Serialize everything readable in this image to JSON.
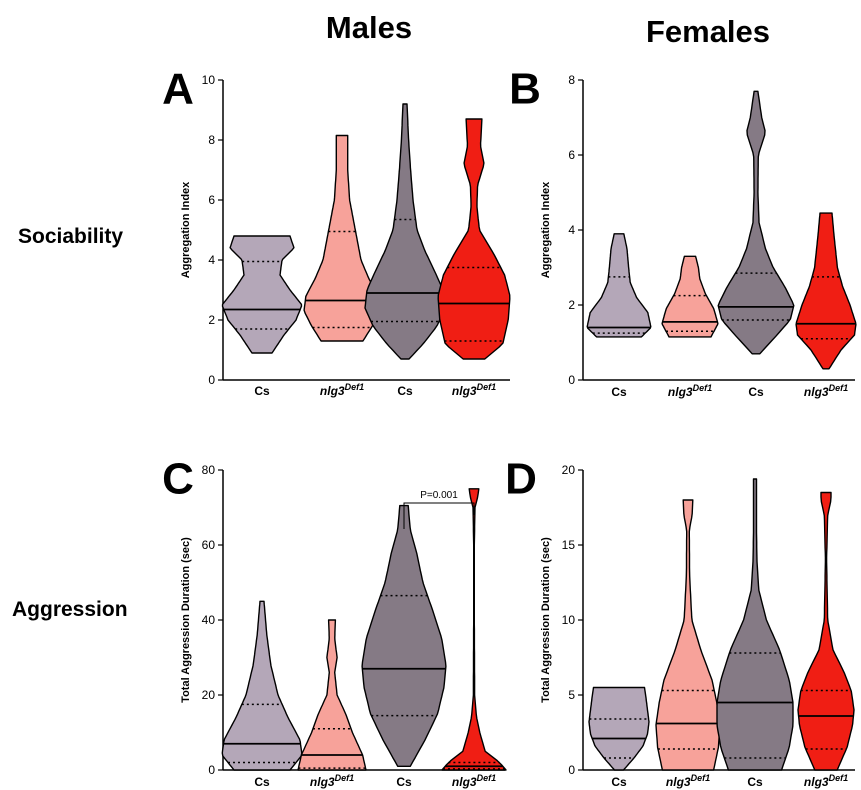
{
  "figure": {
    "col_titles": [
      "Males",
      "Females"
    ],
    "row_titles": [
      "Sociability",
      "Aggression"
    ]
  },
  "chart_data": [
    {
      "type": "violin",
      "panel": "A",
      "ylabel": "Aggregation Index",
      "ylim": [
        0,
        10
      ],
      "yticks": [
        0,
        2,
        4,
        6,
        8,
        10
      ],
      "categories": [
        "Cs",
        "nlg3^Def1",
        "Cs",
        "nlg3^Def1"
      ],
      "colors": [
        "#b4a7b8",
        "#f7a29a",
        "#857a85",
        "#f01e14"
      ],
      "series": [
        {
          "min": 0.9,
          "max": 4.8,
          "median": 2.35,
          "q1": 1.7,
          "q3": 3.95,
          "shape": [
            [
              0.9,
              0.25
            ],
            [
              1.5,
              0.55
            ],
            [
              2.0,
              0.85
            ],
            [
              2.5,
              1.0
            ],
            [
              3.0,
              0.7
            ],
            [
              3.5,
              0.45
            ],
            [
              4.0,
              0.5
            ],
            [
              4.4,
              0.8
            ],
            [
              4.8,
              0.7
            ]
          ]
        },
        {
          "min": 1.3,
          "max": 8.15,
          "median": 2.65,
          "q1": 1.75,
          "q3": 4.95,
          "shape": [
            [
              1.3,
              0.55
            ],
            [
              1.8,
              0.8
            ],
            [
              2.3,
              1.0
            ],
            [
              2.8,
              0.95
            ],
            [
              3.4,
              0.7
            ],
            [
              4.0,
              0.5
            ],
            [
              5.0,
              0.35
            ],
            [
              6.0,
              0.2
            ],
            [
              7.0,
              0.15
            ],
            [
              8.15,
              0.15
            ]
          ]
        },
        {
          "min": 0.7,
          "max": 9.2,
          "median": 2.9,
          "q1": 1.95,
          "q3": 5.35,
          "shape": [
            [
              0.7,
              0.1
            ],
            [
              1.2,
              0.45
            ],
            [
              1.8,
              0.8
            ],
            [
              2.4,
              1.0
            ],
            [
              3.0,
              0.95
            ],
            [
              3.6,
              0.75
            ],
            [
              4.3,
              0.5
            ],
            [
              5.0,
              0.3
            ],
            [
              6.0,
              0.2
            ],
            [
              7.0,
              0.14
            ],
            [
              8.0,
              0.09
            ],
            [
              9.2,
              0.05
            ]
          ]
        },
        {
          "min": 0.7,
          "max": 8.7,
          "median": 2.55,
          "q1": 1.3,
          "q3": 3.75,
          "shape": [
            [
              0.7,
              0.3
            ],
            [
              1.2,
              0.8
            ],
            [
              2.0,
              0.95
            ],
            [
              2.8,
              1.0
            ],
            [
              3.5,
              0.85
            ],
            [
              4.2,
              0.55
            ],
            [
              5.0,
              0.15
            ],
            [
              5.8,
              0.08
            ],
            [
              6.5,
              0.1
            ],
            [
              7.2,
              0.28
            ],
            [
              7.8,
              0.18
            ],
            [
              8.7,
              0.22
            ]
          ]
        }
      ]
    },
    {
      "type": "violin",
      "panel": "B",
      "ylabel": "Aggregation Index",
      "ylim": [
        0,
        8
      ],
      "yticks": [
        0,
        2,
        4,
        6,
        8
      ],
      "categories": [
        "Cs",
        "nlg3^Def1",
        "Cs",
        "nlg3^Def1"
      ],
      "colors": [
        "#b4a7b8",
        "#f7a29a",
        "#857a85",
        "#f01e14"
      ],
      "series": [
        {
          "min": 1.15,
          "max": 3.9,
          "median": 1.4,
          "q1": 1.25,
          "q3": 2.75,
          "shape": [
            [
              1.15,
              0.7
            ],
            [
              1.4,
              1.0
            ],
            [
              1.8,
              0.9
            ],
            [
              2.2,
              0.55
            ],
            [
              2.6,
              0.35
            ],
            [
              3.0,
              0.3
            ],
            [
              3.5,
              0.25
            ],
            [
              3.9,
              0.15
            ]
          ]
        },
        {
          "min": 1.15,
          "max": 3.3,
          "median": 1.55,
          "q1": 1.3,
          "q3": 2.25,
          "shape": [
            [
              1.15,
              0.75
            ],
            [
              1.5,
              1.0
            ],
            [
              1.9,
              0.85
            ],
            [
              2.3,
              0.55
            ],
            [
              2.7,
              0.35
            ],
            [
              3.0,
              0.3
            ],
            [
              3.3,
              0.2
            ]
          ]
        },
        {
          "min": 0.7,
          "max": 7.7,
          "median": 1.95,
          "q1": 1.6,
          "q3": 2.85,
          "shape": [
            [
              0.7,
              0.1
            ],
            [
              1.2,
              0.55
            ],
            [
              1.6,
              0.9
            ],
            [
              2.0,
              1.0
            ],
            [
              2.5,
              0.75
            ],
            [
              3.0,
              0.45
            ],
            [
              3.5,
              0.25
            ],
            [
              4.2,
              0.08
            ],
            [
              5.0,
              0.05
            ],
            [
              6.0,
              0.06
            ],
            [
              6.6,
              0.25
            ],
            [
              7.0,
              0.15
            ],
            [
              7.7,
              0.05
            ]
          ]
        },
        {
          "min": 0.3,
          "max": 4.45,
          "median": 1.5,
          "q1": 1.1,
          "q3": 2.75,
          "shape": [
            [
              0.3,
              0.1
            ],
            [
              0.8,
              0.5
            ],
            [
              1.2,
              0.95
            ],
            [
              1.5,
              1.0
            ],
            [
              2.0,
              0.8
            ],
            [
              2.5,
              0.55
            ],
            [
              3.0,
              0.38
            ],
            [
              3.6,
              0.3
            ],
            [
              4.0,
              0.25
            ],
            [
              4.45,
              0.2
            ]
          ]
        }
      ]
    },
    {
      "type": "violin",
      "panel": "C",
      "ylabel": "Total Aggression Duration (sec)",
      "ylim": [
        0,
        80
      ],
      "yticks": [
        0,
        20,
        40,
        60,
        80
      ],
      "categories": [
        "Cs",
        "nlg3^Def1",
        "Cs",
        "nlg3^Def1"
      ],
      "colors": [
        "#b4a7b8",
        "#f7a29a",
        "#857a85",
        "#f01e14"
      ],
      "annotation": {
        "text": "P=0.001",
        "from": 2,
        "to": 3
      },
      "series": [
        {
          "min": 0,
          "max": 45,
          "median": 7,
          "q1": 2,
          "q3": 17.5,
          "shape": [
            [
              0,
              0.7
            ],
            [
              4,
              1.0
            ],
            [
              8,
              0.95
            ],
            [
              14,
              0.65
            ],
            [
              20,
              0.4
            ],
            [
              28,
              0.22
            ],
            [
              36,
              0.12
            ],
            [
              45,
              0.05
            ]
          ]
        },
        {
          "min": 0,
          "max": 40,
          "median": 4,
          "q1": 0.5,
          "q3": 11,
          "shape": [
            [
              0,
              1.0
            ],
            [
              4,
              0.9
            ],
            [
              10,
              0.6
            ],
            [
              15,
              0.4
            ],
            [
              20,
              0.15
            ],
            [
              26,
              0.08
            ],
            [
              30,
              0.15
            ],
            [
              35,
              0.08
            ],
            [
              40,
              0.1
            ]
          ]
        },
        {
          "min": 1,
          "max": 70.5,
          "median": 27,
          "q1": 14.5,
          "q3": 46.5,
          "shape": [
            [
              1,
              0.15
            ],
            [
              8,
              0.5
            ],
            [
              15,
              0.8
            ],
            [
              22,
              0.95
            ],
            [
              28,
              1.0
            ],
            [
              35,
              0.9
            ],
            [
              42,
              0.7
            ],
            [
              50,
              0.45
            ],
            [
              58,
              0.3
            ],
            [
              64,
              0.15
            ],
            [
              70.5,
              0.1
            ]
          ]
        },
        {
          "min": 0,
          "max": 75,
          "median": 1,
          "q1": 0.3,
          "q3": 2,
          "shape": [
            [
              0,
              1.0
            ],
            [
              2,
              0.8
            ],
            [
              5,
              0.35
            ],
            [
              10,
              0.18
            ],
            [
              14,
              0.08
            ],
            [
              20,
              0.02
            ],
            [
              40,
              0.01
            ],
            [
              60,
              0.01
            ],
            [
              70,
              0.03
            ],
            [
              73,
              0.12
            ],
            [
              75,
              0.15
            ]
          ]
        }
      ]
    },
    {
      "type": "violin",
      "panel": "D",
      "ylabel": "Total Aggression Duration (sec)",
      "ylim": [
        0,
        20
      ],
      "yticks": [
        0,
        5,
        10,
        15,
        20
      ],
      "categories": [
        "Cs",
        "nlg3^Def1",
        "Cs",
        "nlg3^Def1"
      ],
      "colors": [
        "#b4a7b8",
        "#f7a29a",
        "#857a85",
        "#f01e14"
      ],
      "series": [
        {
          "min": 0,
          "max": 5.5,
          "median": 2.1,
          "q1": 0.8,
          "q3": 3.4,
          "shape": [
            [
              0,
              0.15
            ],
            [
              0.8,
              0.5
            ],
            [
              1.6,
              0.8
            ],
            [
              2.4,
              0.95
            ],
            [
              3.2,
              1.0
            ],
            [
              4.0,
              0.95
            ],
            [
              4.8,
              0.9
            ],
            [
              5.5,
              0.85
            ]
          ]
        },
        {
          "min": 0,
          "max": 18,
          "median": 3.1,
          "q1": 1.4,
          "q3": 5.3,
          "shape": [
            [
              0,
              0.8
            ],
            [
              1.5,
              0.95
            ],
            [
              3,
              1.0
            ],
            [
              4.5,
              0.9
            ],
            [
              6,
              0.75
            ],
            [
              8,
              0.4
            ],
            [
              10,
              0.12
            ],
            [
              13,
              0.05
            ],
            [
              16,
              0.04
            ],
            [
              17,
              0.13
            ],
            [
              18,
              0.15
            ]
          ]
        },
        {
          "min": 0,
          "max": 19.4,
          "median": 4.5,
          "q1": 0.8,
          "q3": 7.8,
          "shape": [
            [
              0,
              0.7
            ],
            [
              1.5,
              0.9
            ],
            [
              3,
              1.0
            ],
            [
              4.5,
              1.0
            ],
            [
              6,
              0.9
            ],
            [
              8,
              0.65
            ],
            [
              10,
              0.3
            ],
            [
              12,
              0.1
            ],
            [
              14,
              0.05
            ],
            [
              16,
              0.04
            ],
            [
              18,
              0.04
            ],
            [
              19.4,
              0.04
            ]
          ]
        },
        {
          "min": 0,
          "max": 18.5,
          "median": 3.6,
          "q1": 1.4,
          "q3": 5.3,
          "shape": [
            [
              0,
              0.4
            ],
            [
              1.5,
              0.75
            ],
            [
              3,
              0.95
            ],
            [
              4,
              1.0
            ],
            [
              5.3,
              0.9
            ],
            [
              6.5,
              0.65
            ],
            [
              8,
              0.25
            ],
            [
              10,
              0.06
            ],
            [
              14,
              0.02
            ],
            [
              17,
              0.06
            ],
            [
              18,
              0.18
            ],
            [
              18.5,
              0.18
            ]
          ]
        }
      ]
    }
  ]
}
